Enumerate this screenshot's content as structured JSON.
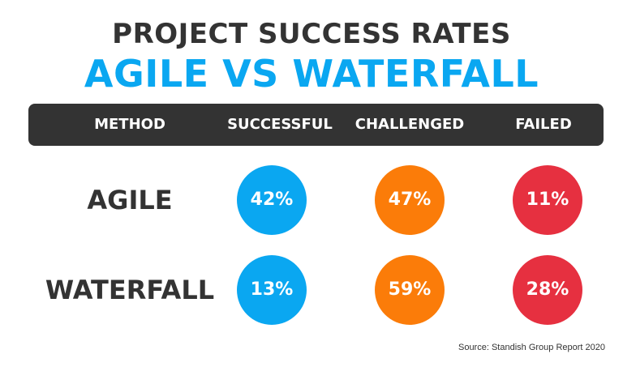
{
  "colors": {
    "title_dark": "#333333",
    "title_accent": "#0aa7f1",
    "header_bg": "#333333",
    "successful": "#0aa7f1",
    "challenged": "#fb7c09",
    "failed": "#e63040"
  },
  "chart_data": {
    "type": "table",
    "title": "PROJECT SUCCESS RATES",
    "subtitle": "AGILE VS WATERFALL",
    "columns": [
      "METHOD",
      "SUCCESSFUL",
      "CHALLENGED",
      "FAILED"
    ],
    "rows": [
      {
        "method": "AGILE",
        "values": [
          42,
          47,
          11
        ],
        "labels": [
          "42%",
          "47%",
          "11%"
        ]
      },
      {
        "method": "WATERFALL",
        "values": [
          13,
          59,
          28
        ],
        "labels": [
          "13%",
          "59%",
          "28%"
        ]
      }
    ],
    "source": "Source: Standish Group Report 2020"
  }
}
